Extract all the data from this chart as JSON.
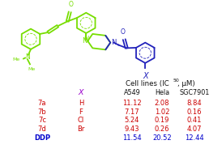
{
  "col_headers": [
    "A549",
    "Hela",
    "SGC7901"
  ],
  "rows": [
    {
      "label": "7a",
      "x": "H",
      "vals": [
        "11.12",
        "2.08",
        "8.84"
      ]
    },
    {
      "label": "7b",
      "x": "F",
      "vals": [
        "7.17",
        "1.02",
        "0.16"
      ]
    },
    {
      "label": "7c",
      "x": "Cl",
      "vals": [
        "5.24",
        "0.19",
        "0.41"
      ]
    },
    {
      "label": "7d",
      "x": "Br",
      "vals": [
        "9.43",
        "0.26",
        "4.07"
      ]
    },
    {
      "label": "DDP",
      "x": "",
      "vals": [
        "11.54",
        "20.52",
        "12.44"
      ]
    }
  ],
  "row_label_color": "#cc0000",
  "ddp_color": "#0000cc",
  "x_col_color": "#cc0000",
  "val_color": "#cc0000",
  "ddp_val_color": "#0000cc",
  "header_color": "#111111",
  "x_header_color": "#9900cc",
  "chalcone_color": "#77dd00",
  "phenacyl_color": "#2222bb",
  "bg_color": "#ffffff",
  "nme2_color": "#77dd00",
  "o_color": "#77dd00",
  "o2_color": "#2222bb"
}
